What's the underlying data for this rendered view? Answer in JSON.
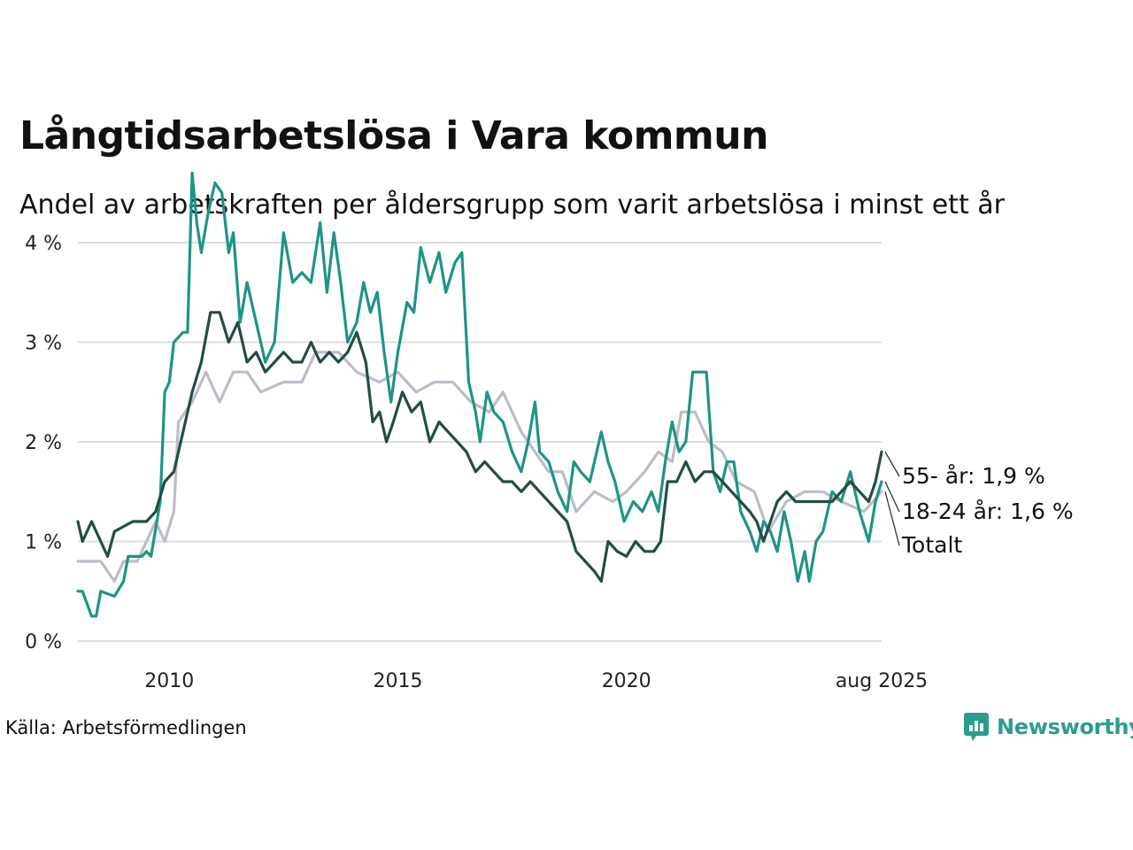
{
  "title": "Långtidsarbetslösa i Vara kommun",
  "subtitle": "Andel av arbetskraften per åldersgrupp som varit arbetslösa i minst ett år",
  "source": "Källa: Arbetsförmedlingen",
  "brand": "Newsworthy",
  "colors": {
    "age_55": "#234d45",
    "age_18_24": "#1f9485",
    "total": "#bdbcc8",
    "grid": "#dddddd",
    "brand": "#2a9d8f"
  },
  "chart_data": {
    "type": "line",
    "xlim": [
      2008.0,
      2025.583
    ],
    "ylim": [
      0,
      4.8
    ],
    "x_ticks": [
      {
        "value": 2010,
        "label": "2010"
      },
      {
        "value": 2015,
        "label": "2015"
      },
      {
        "value": 2020,
        "label": "2020"
      },
      {
        "value": 2025.583,
        "label": "aug 2025"
      }
    ],
    "y_ticks": [
      {
        "value": 0,
        "label": "0 %"
      },
      {
        "value": 1,
        "label": "1 %"
      },
      {
        "value": 2,
        "label": "2 %"
      },
      {
        "value": 3,
        "label": "3 %"
      },
      {
        "value": 4,
        "label": "4 %"
      }
    ],
    "grid": true,
    "legend": "end-labels",
    "series": [
      {
        "key": "total",
        "name": "Totalt",
        "end_label": "Totalt",
        "points": [
          [
            2008.0,
            0.8
          ],
          [
            2008.5,
            0.8
          ],
          [
            2008.8,
            0.6
          ],
          [
            2009.0,
            0.8
          ],
          [
            2009.3,
            0.8
          ],
          [
            2009.7,
            1.2
          ],
          [
            2009.9,
            1.0
          ],
          [
            2010.1,
            1.3
          ],
          [
            2010.2,
            2.2
          ],
          [
            2010.5,
            2.4
          ],
          [
            2010.8,
            2.7
          ],
          [
            2011.1,
            2.4
          ],
          [
            2011.4,
            2.7
          ],
          [
            2011.7,
            2.7
          ],
          [
            2012.0,
            2.5
          ],
          [
            2012.5,
            2.6
          ],
          [
            2012.9,
            2.6
          ],
          [
            2013.2,
            2.9
          ],
          [
            2013.7,
            2.9
          ],
          [
            2014.1,
            2.7
          ],
          [
            2014.6,
            2.6
          ],
          [
            2015.0,
            2.7
          ],
          [
            2015.4,
            2.5
          ],
          [
            2015.8,
            2.6
          ],
          [
            2016.2,
            2.6
          ],
          [
            2016.6,
            2.4
          ],
          [
            2017.0,
            2.3
          ],
          [
            2017.3,
            2.5
          ],
          [
            2017.7,
            2.1
          ],
          [
            2018.0,
            1.9
          ],
          [
            2018.3,
            1.7
          ],
          [
            2018.6,
            1.7
          ],
          [
            2018.9,
            1.3
          ],
          [
            2019.3,
            1.5
          ],
          [
            2019.7,
            1.4
          ],
          [
            2020.0,
            1.5
          ],
          [
            2020.4,
            1.7
          ],
          [
            2020.7,
            1.9
          ],
          [
            2021.0,
            1.8
          ],
          [
            2021.2,
            2.3
          ],
          [
            2021.5,
            2.3
          ],
          [
            2021.8,
            2.0
          ],
          [
            2022.1,
            1.9
          ],
          [
            2022.4,
            1.6
          ],
          [
            2022.8,
            1.5
          ],
          [
            2023.1,
            1.1
          ],
          [
            2023.5,
            1.4
          ],
          [
            2023.9,
            1.5
          ],
          [
            2024.3,
            1.5
          ],
          [
            2024.7,
            1.4
          ],
          [
            2025.2,
            1.3
          ],
          [
            2025.583,
            1.5
          ]
        ]
      },
      {
        "key": "age_18_24",
        "name": "18-24 år",
        "end_label": "18-24 år: 1,6 %",
        "points": [
          [
            2008.0,
            0.5
          ],
          [
            2008.1,
            0.5
          ],
          [
            2008.3,
            0.25
          ],
          [
            2008.4,
            0.25
          ],
          [
            2008.5,
            0.5
          ],
          [
            2008.8,
            0.45
          ],
          [
            2009.0,
            0.6
          ],
          [
            2009.1,
            0.85
          ],
          [
            2009.4,
            0.85
          ],
          [
            2009.5,
            0.9
          ],
          [
            2009.6,
            0.85
          ],
          [
            2009.8,
            1.4
          ],
          [
            2009.9,
            2.5
          ],
          [
            2010.0,
            2.6
          ],
          [
            2010.1,
            3.0
          ],
          [
            2010.3,
            3.1
          ],
          [
            2010.4,
            3.1
          ],
          [
            2010.5,
            4.7
          ],
          [
            2010.6,
            4.2
          ],
          [
            2010.7,
            3.9
          ],
          [
            2010.85,
            4.3
          ],
          [
            2011.0,
            4.6
          ],
          [
            2011.15,
            4.5
          ],
          [
            2011.3,
            3.9
          ],
          [
            2011.4,
            4.1
          ],
          [
            2011.55,
            3.2
          ],
          [
            2011.7,
            3.6
          ],
          [
            2011.9,
            3.2
          ],
          [
            2012.1,
            2.8
          ],
          [
            2012.3,
            3.0
          ],
          [
            2012.5,
            4.1
          ],
          [
            2012.7,
            3.6
          ],
          [
            2012.9,
            3.7
          ],
          [
            2013.1,
            3.6
          ],
          [
            2013.3,
            4.2
          ],
          [
            2013.45,
            3.5
          ],
          [
            2013.6,
            4.1
          ],
          [
            2013.75,
            3.6
          ],
          [
            2013.9,
            3.0
          ],
          [
            2014.1,
            3.2
          ],
          [
            2014.25,
            3.6
          ],
          [
            2014.4,
            3.3
          ],
          [
            2014.55,
            3.5
          ],
          [
            2014.7,
            2.9
          ],
          [
            2014.85,
            2.4
          ],
          [
            2015.0,
            2.9
          ],
          [
            2015.2,
            3.4
          ],
          [
            2015.35,
            3.3
          ],
          [
            2015.5,
            3.95
          ],
          [
            2015.7,
            3.6
          ],
          [
            2015.9,
            3.9
          ],
          [
            2016.05,
            3.5
          ],
          [
            2016.25,
            3.8
          ],
          [
            2016.4,
            3.9
          ],
          [
            2016.55,
            2.6
          ],
          [
            2016.7,
            2.3
          ],
          [
            2016.8,
            2.0
          ],
          [
            2016.95,
            2.5
          ],
          [
            2017.1,
            2.3
          ],
          [
            2017.3,
            2.2
          ],
          [
            2017.5,
            1.9
          ],
          [
            2017.7,
            1.7
          ],
          [
            2017.85,
            2.0
          ],
          [
            2018.0,
            2.4
          ],
          [
            2018.1,
            1.9
          ],
          [
            2018.3,
            1.8
          ],
          [
            2018.5,
            1.5
          ],
          [
            2018.7,
            1.3
          ],
          [
            2018.85,
            1.8
          ],
          [
            2019.0,
            1.7
          ],
          [
            2019.2,
            1.6
          ],
          [
            2019.45,
            2.1
          ],
          [
            2019.6,
            1.8
          ],
          [
            2019.75,
            1.6
          ],
          [
            2019.95,
            1.2
          ],
          [
            2020.15,
            1.4
          ],
          [
            2020.35,
            1.3
          ],
          [
            2020.55,
            1.5
          ],
          [
            2020.7,
            1.3
          ],
          [
            2020.85,
            1.8
          ],
          [
            2021.0,
            2.2
          ],
          [
            2021.15,
            1.9
          ],
          [
            2021.3,
            2.0
          ],
          [
            2021.45,
            2.7
          ],
          [
            2021.6,
            2.7
          ],
          [
            2021.75,
            2.7
          ],
          [
            2021.9,
            1.7
          ],
          [
            2022.05,
            1.5
          ],
          [
            2022.2,
            1.8
          ],
          [
            2022.35,
            1.8
          ],
          [
            2022.5,
            1.3
          ],
          [
            2022.7,
            1.1
          ],
          [
            2022.85,
            0.9
          ],
          [
            2023.0,
            1.2
          ],
          [
            2023.15,
            1.1
          ],
          [
            2023.3,
            0.9
          ],
          [
            2023.45,
            1.3
          ],
          [
            2023.6,
            1.0
          ],
          [
            2023.75,
            0.6
          ],
          [
            2023.9,
            0.9
          ],
          [
            2024.0,
            0.6
          ],
          [
            2024.15,
            1.0
          ],
          [
            2024.3,
            1.1
          ],
          [
            2024.5,
            1.5
          ],
          [
            2024.7,
            1.4
          ],
          [
            2024.9,
            1.7
          ],
          [
            2025.1,
            1.3
          ],
          [
            2025.3,
            1.0
          ],
          [
            2025.45,
            1.4
          ],
          [
            2025.583,
            1.6
          ]
        ]
      },
      {
        "key": "age_55",
        "name": "55- år",
        "end_label": "55- år: 1,9 %",
        "points": [
          [
            2008.0,
            1.2
          ],
          [
            2008.1,
            1.0
          ],
          [
            2008.3,
            1.2
          ],
          [
            2008.5,
            1.0
          ],
          [
            2008.65,
            0.85
          ],
          [
            2008.8,
            1.1
          ],
          [
            2009.0,
            1.15
          ],
          [
            2009.2,
            1.2
          ],
          [
            2009.5,
            1.2
          ],
          [
            2009.7,
            1.3
          ],
          [
            2009.9,
            1.6
          ],
          [
            2010.1,
            1.7
          ],
          [
            2010.3,
            2.1
          ],
          [
            2010.5,
            2.5
          ],
          [
            2010.7,
            2.8
          ],
          [
            2010.9,
            3.3
          ],
          [
            2011.1,
            3.3
          ],
          [
            2011.3,
            3.0
          ],
          [
            2011.5,
            3.2
          ],
          [
            2011.7,
            2.8
          ],
          [
            2011.9,
            2.9
          ],
          [
            2012.1,
            2.7
          ],
          [
            2012.3,
            2.8
          ],
          [
            2012.5,
            2.9
          ],
          [
            2012.7,
            2.8
          ],
          [
            2012.9,
            2.8
          ],
          [
            2013.1,
            3.0
          ],
          [
            2013.3,
            2.8
          ],
          [
            2013.5,
            2.9
          ],
          [
            2013.7,
            2.8
          ],
          [
            2013.9,
            2.9
          ],
          [
            2014.1,
            3.1
          ],
          [
            2014.3,
            2.8
          ],
          [
            2014.45,
            2.2
          ],
          [
            2014.6,
            2.3
          ],
          [
            2014.75,
            2.0
          ],
          [
            2014.9,
            2.2
          ],
          [
            2015.1,
            2.5
          ],
          [
            2015.3,
            2.3
          ],
          [
            2015.5,
            2.4
          ],
          [
            2015.7,
            2.0
          ],
          [
            2015.9,
            2.2
          ],
          [
            2016.1,
            2.1
          ],
          [
            2016.3,
            2.0
          ],
          [
            2016.5,
            1.9
          ],
          [
            2016.7,
            1.7
          ],
          [
            2016.9,
            1.8
          ],
          [
            2017.1,
            1.7
          ],
          [
            2017.3,
            1.6
          ],
          [
            2017.5,
            1.6
          ],
          [
            2017.7,
            1.5
          ],
          [
            2017.9,
            1.6
          ],
          [
            2018.1,
            1.5
          ],
          [
            2018.3,
            1.4
          ],
          [
            2018.5,
            1.3
          ],
          [
            2018.7,
            1.2
          ],
          [
            2018.9,
            0.9
          ],
          [
            2019.1,
            0.8
          ],
          [
            2019.3,
            0.7
          ],
          [
            2019.45,
            0.6
          ],
          [
            2019.6,
            1.0
          ],
          [
            2019.8,
            0.9
          ],
          [
            2020.0,
            0.85
          ],
          [
            2020.2,
            1.0
          ],
          [
            2020.4,
            0.9
          ],
          [
            2020.6,
            0.9
          ],
          [
            2020.75,
            1.0
          ],
          [
            2020.9,
            1.6
          ],
          [
            2021.1,
            1.6
          ],
          [
            2021.3,
            1.8
          ],
          [
            2021.5,
            1.6
          ],
          [
            2021.7,
            1.7
          ],
          [
            2021.9,
            1.7
          ],
          [
            2022.1,
            1.6
          ],
          [
            2022.3,
            1.5
          ],
          [
            2022.5,
            1.4
          ],
          [
            2022.7,
            1.3
          ],
          [
            2022.85,
            1.2
          ],
          [
            2023.0,
            1.0
          ],
          [
            2023.15,
            1.2
          ],
          [
            2023.3,
            1.4
          ],
          [
            2023.5,
            1.5
          ],
          [
            2023.7,
            1.4
          ],
          [
            2023.9,
            1.4
          ],
          [
            2024.1,
            1.4
          ],
          [
            2024.3,
            1.4
          ],
          [
            2024.5,
            1.4
          ],
          [
            2024.7,
            1.5
          ],
          [
            2024.9,
            1.6
          ],
          [
            2025.1,
            1.5
          ],
          [
            2025.3,
            1.4
          ],
          [
            2025.45,
            1.6
          ],
          [
            2025.583,
            1.9
          ]
        ]
      }
    ]
  }
}
